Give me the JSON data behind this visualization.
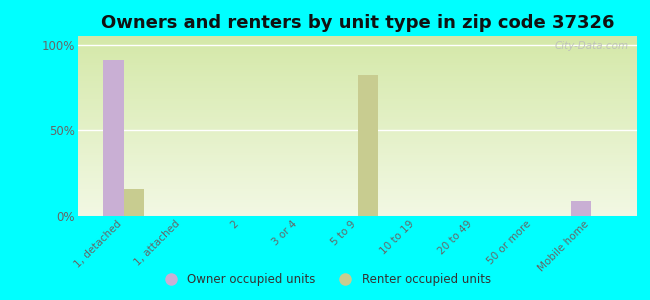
{
  "title": "Owners and renters by unit type in zip code 37326",
  "categories": [
    "1, detached",
    "1, attached",
    "2",
    "3 or 4",
    "5 to 9",
    "10 to 19",
    "20 to 49",
    "50 or more",
    "Mobile home"
  ],
  "owner_values": [
    91,
    0,
    0,
    0,
    0,
    0,
    0,
    0,
    9
  ],
  "renter_values": [
    16,
    0,
    0,
    0,
    82,
    0,
    0,
    0,
    0
  ],
  "owner_color": "#c9afd4",
  "renter_color": "#c8cc90",
  "background_color": "#00ffff",
  "grad_top": "#d4e8a8",
  "grad_bottom": "#f2f8e4",
  "yticks": [
    0,
    50,
    100
  ],
  "ylim": [
    0,
    105
  ],
  "bar_width": 0.35,
  "title_fontsize": 13,
  "watermark": "City-Data.com",
  "tick_label_color": "#666666",
  "legend_label": [
    "Owner occupied units",
    "Renter occupied units"
  ]
}
